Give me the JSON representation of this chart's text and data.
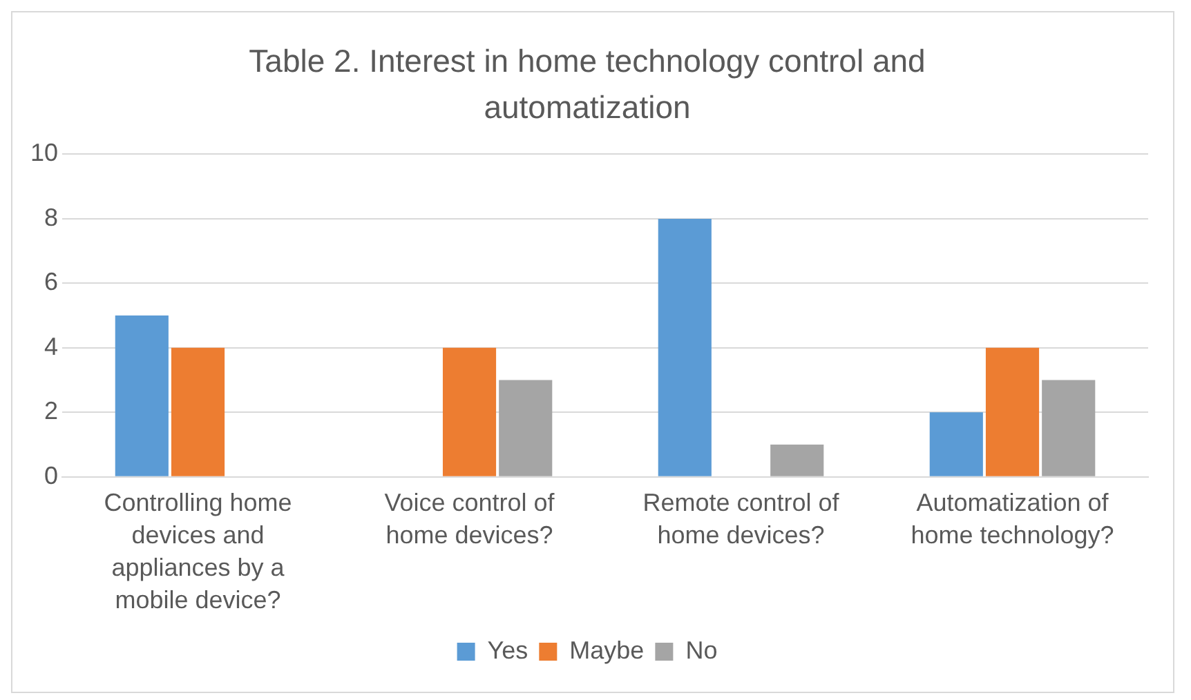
{
  "chart_data": {
    "type": "bar",
    "title": "Table 2. Interest in home technology control and automatization",
    "categories": [
      "Controlling home devices and appliances by a mobile device?",
      "Voice control of home devices?",
      "Remote control of home devices?",
      "Automatization of home technology?"
    ],
    "series": [
      {
        "name": "Yes",
        "color": "#5b9bd5",
        "values": [
          5,
          0,
          8,
          2
        ]
      },
      {
        "name": "Maybe",
        "color": "#ed7d31",
        "values": [
          4,
          4,
          0,
          4
        ]
      },
      {
        "name": "No",
        "color": "#a5a5a5",
        "values": [
          0,
          3,
          1,
          3
        ]
      }
    ],
    "ylim": [
      0,
      10
    ],
    "yticks": [
      0,
      2,
      4,
      6,
      8,
      10
    ],
    "grid": "y",
    "legend": "bottom"
  }
}
